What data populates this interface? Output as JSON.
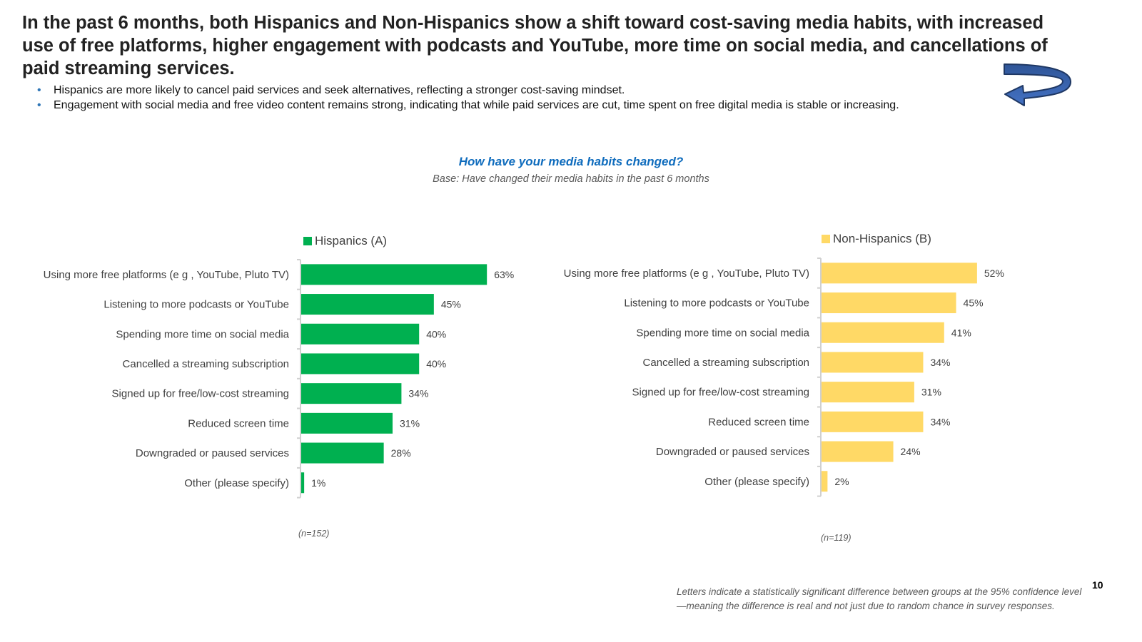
{
  "headline": "In the past 6 months, both Hispanics and Non-Hispanics show a shift toward cost-saving media habits, with increased use of free platforms, higher engagement with podcasts and YouTube, more time on social media, and cancellations of paid streaming services.",
  "bullets": [
    "Hispanics are more likely to cancel paid services and seek alternatives, reflecting a stronger cost-saving mindset.",
    "Engagement with social media and free video content remains strong, indicating that while paid services are cut, time spent on free digital media is stable or increasing."
  ],
  "bullet_symbol": "•",
  "icons": {
    "arrow": "curved-return-arrow-icon"
  },
  "footnote": "Letters indicate a statistically significant difference between groups at the 95% confidence level—meaning the difference is real and not just due to random chance in survey responses.",
  "page_number": "10",
  "colors": {
    "hispanics": "#00b050",
    "non_hispanics": "#ffd966",
    "question_title": "#0f6cbd",
    "bullet": "#2e75b6",
    "arrow_fill": "#3c6cc4",
    "arrow_stroke": "#1f3864"
  },
  "chart_data": {
    "type": "bar",
    "orientation": "horizontal",
    "title": "How have your media habits changed?",
    "subtitle": "Base: Have changed their media habits in the past 6 months",
    "categories": [
      "Using more free platforms (e g , YouTube, Pluto TV)",
      "Listening to more podcasts or YouTube",
      "Spending more time on social media",
      "Cancelled a streaming subscription",
      "Signed up for free/low-cost streaming",
      "Reduced screen time",
      "Downgraded or paused services",
      "Other (please specify)"
    ],
    "unit": "%",
    "grid": false,
    "panels": [
      {
        "name": "Hispanics (A)",
        "color": "#00b050",
        "values": [
          63,
          45,
          40,
          40,
          34,
          31,
          28,
          1
        ],
        "n_label": "(n=152)",
        "legend": "top"
      },
      {
        "name": "Non-Hispanics (B)",
        "color": "#ffd966",
        "values": [
          52,
          45,
          41,
          34,
          31,
          34,
          24,
          2
        ],
        "n_label": "(n=119)",
        "legend": "top"
      }
    ],
    "xlabel": "",
    "ylabel": "",
    "xlim": [
      0,
      100
    ]
  }
}
